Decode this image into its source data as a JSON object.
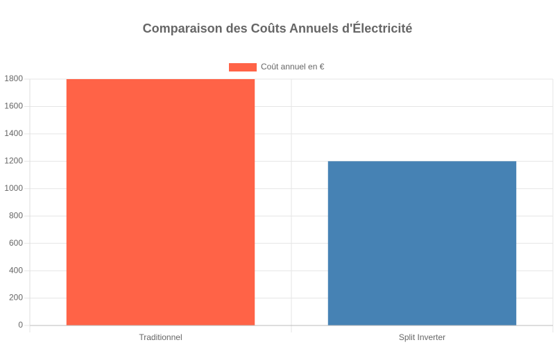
{
  "chart_data": {
    "type": "bar",
    "title": "Comparaison des Coûts Annuels d'Électricité",
    "categories": [
      "Traditionnel",
      "Split Inverter"
    ],
    "series": [
      {
        "name": "Coût annuel en €",
        "colors": [
          "#ff6347",
          "#4682b4"
        ],
        "values": [
          1800,
          1200
        ]
      }
    ],
    "ylim": [
      0,
      1800
    ],
    "yticks": [
      0,
      200,
      400,
      600,
      800,
      1000,
      1200,
      1400,
      1600,
      1800
    ],
    "grid": true,
    "legend": "top"
  }
}
